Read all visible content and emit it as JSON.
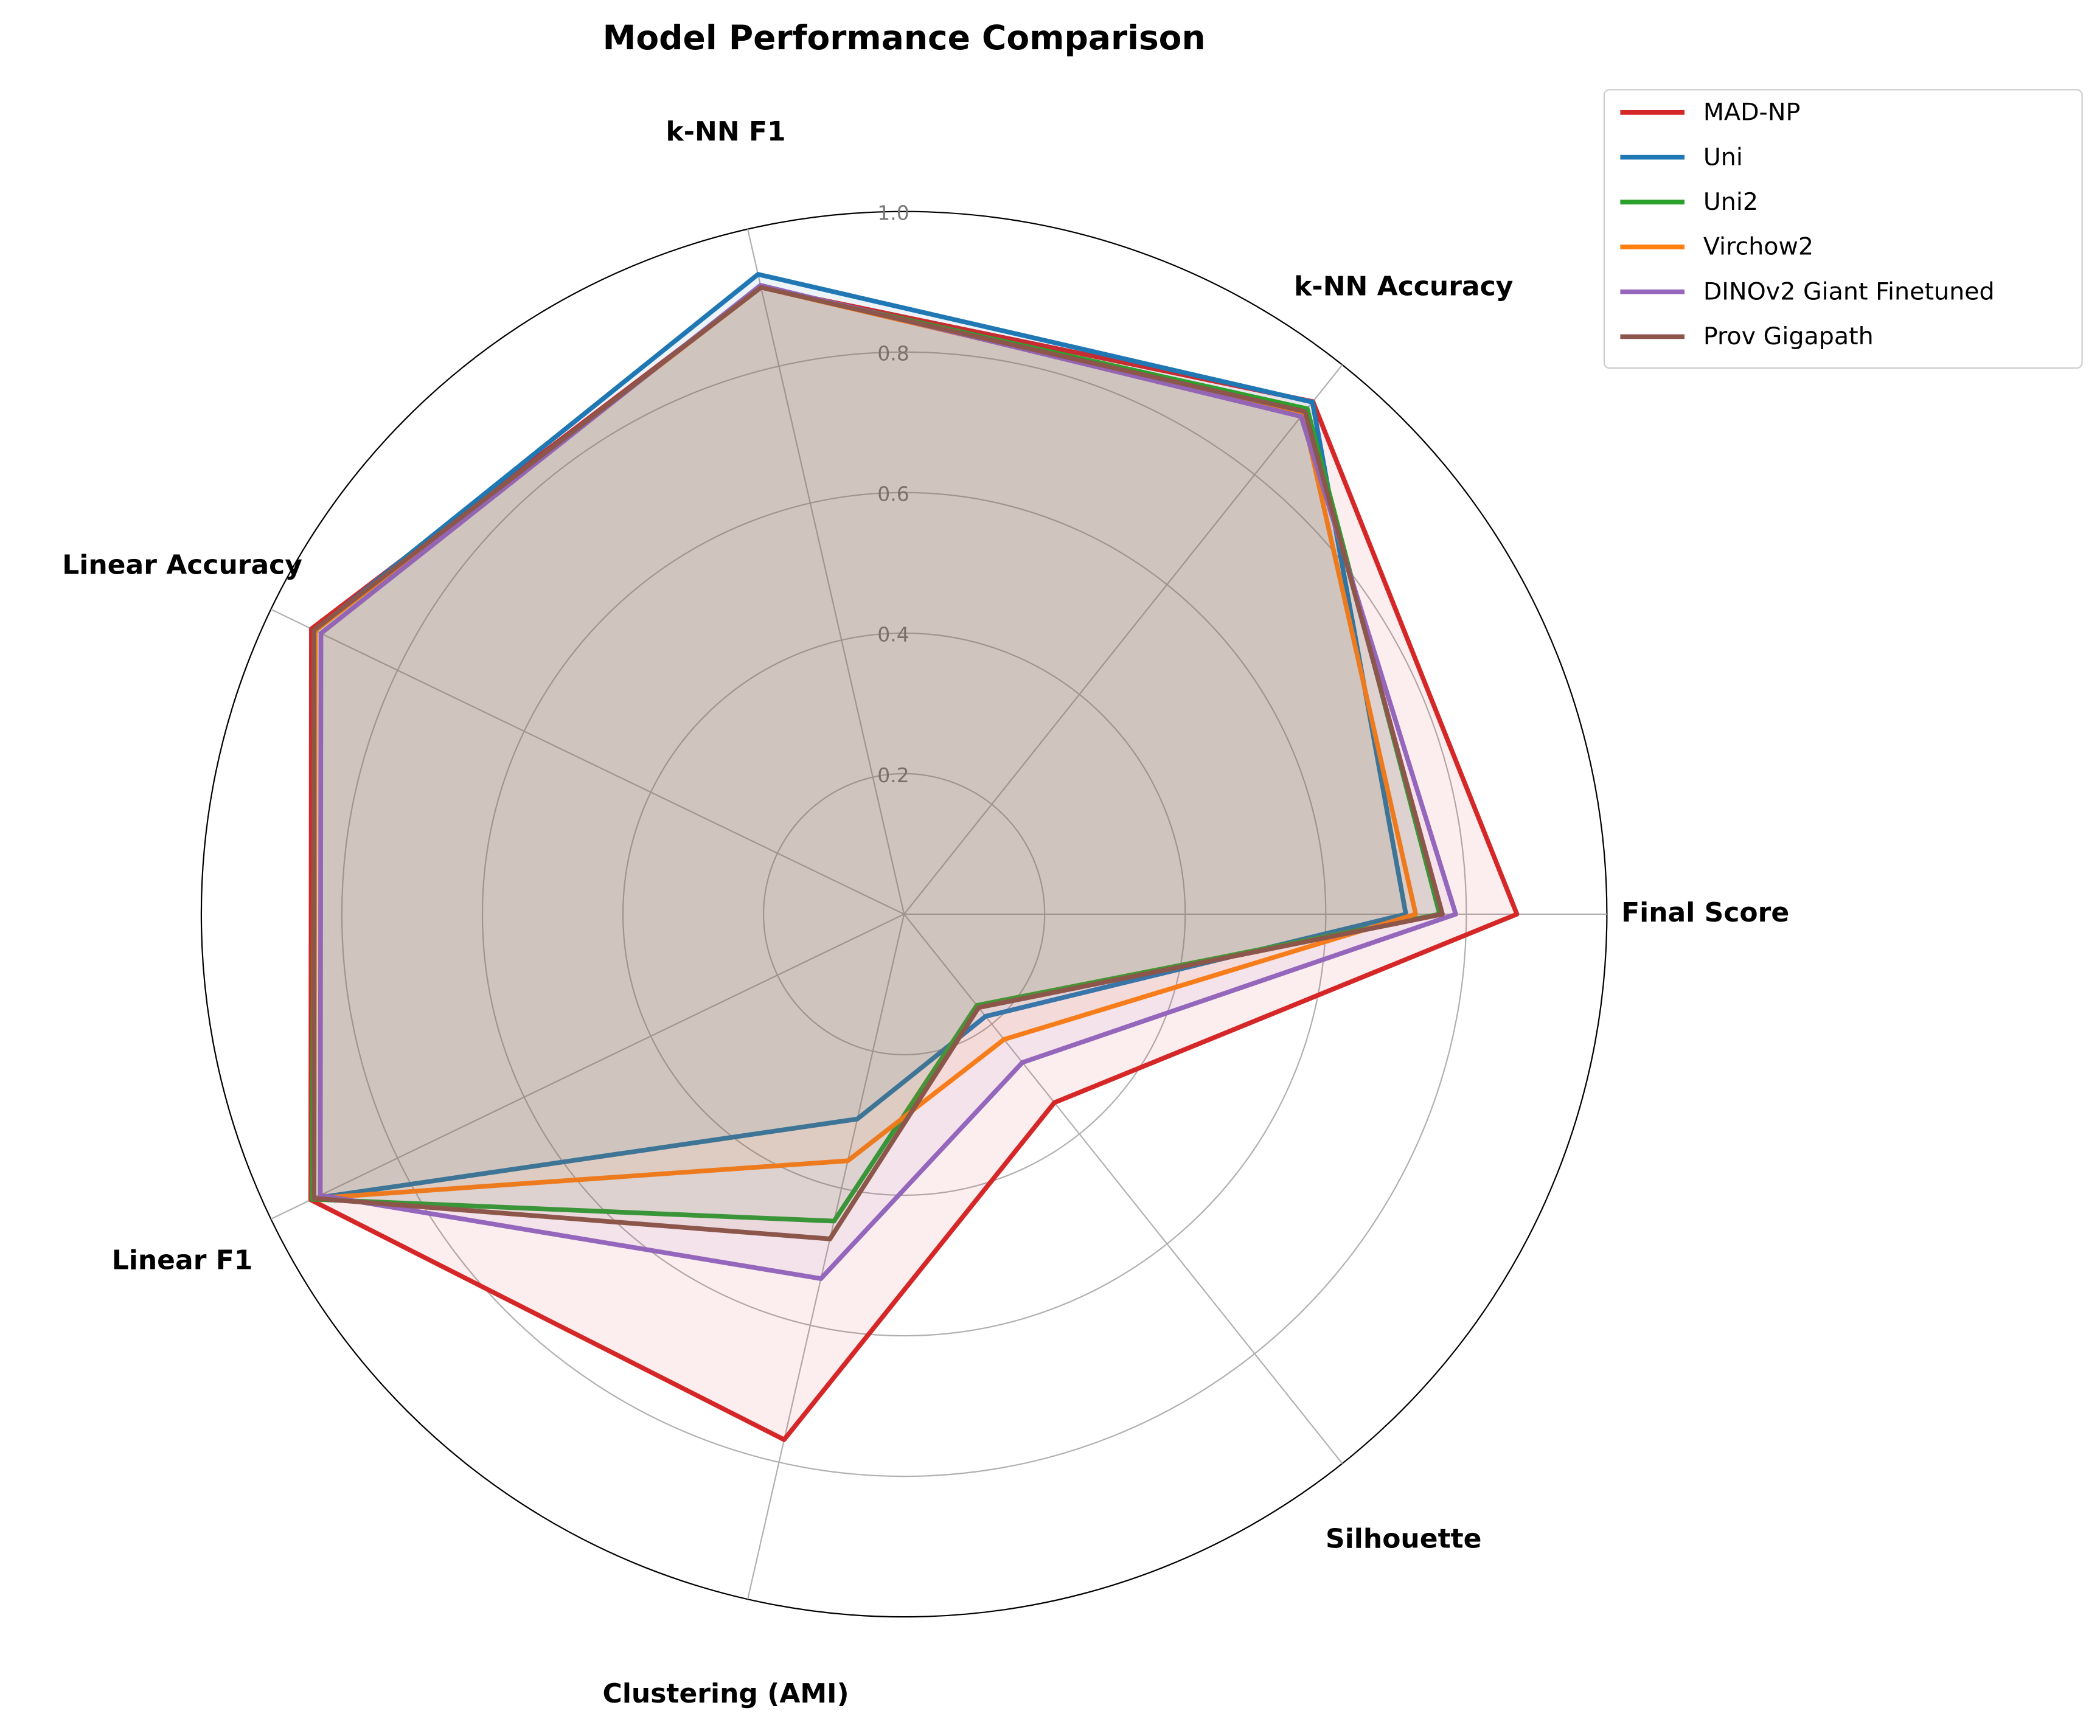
{
  "chart_data": {
    "type": "radar",
    "title": "Model Performance Comparison",
    "categories": [
      "Final Score",
      "k-NN Accuracy",
      "k-NN F1",
      "Linear Accuracy",
      "Linear F1",
      "Clustering (AMI)",
      "Silhouette"
    ],
    "rlim": [
      0,
      1
    ],
    "rticks": [
      0.2,
      0.4,
      0.6,
      0.8,
      {
        "value": 1,
        "label": "1.0"
      }
    ],
    "grid": true,
    "legend": "upper right",
    "series": [
      {
        "name": "MAD-NP",
        "color": "#d62728",
        "values": [
          0.872,
          0.933,
          0.915,
          0.936,
          0.937,
          0.767,
          0.343
        ]
      },
      {
        "name": "Uni",
        "color": "#1f77b4",
        "values": [
          0.714,
          0.932,
          0.934,
          0.931,
          0.932,
          0.299,
          0.186
        ]
      },
      {
        "name": "Uni2",
        "color": "#2ca02c",
        "values": [
          0.762,
          0.92,
          0.915,
          0.93,
          0.935,
          0.448,
          0.166
        ]
      },
      {
        "name": "Virchow2",
        "color": "#ff7f0e",
        "values": [
          0.728,
          0.91,
          0.915,
          0.93,
          0.932,
          0.36,
          0.228
        ]
      },
      {
        "name": "DINOv2 Giant Finetuned",
        "color": "#9467bd",
        "values": [
          0.785,
          0.906,
          0.918,
          0.921,
          0.922,
          0.532,
          0.27
        ]
      },
      {
        "name": "Prov Gigapath",
        "color": "#8c564b",
        "values": [
          0.766,
          0.915,
          0.915,
          0.932,
          0.932,
          0.474,
          0.17
        ]
      }
    ]
  }
}
